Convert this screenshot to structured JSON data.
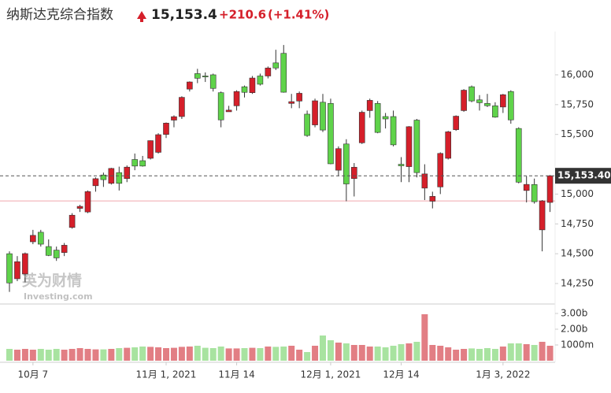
{
  "chart_data": {
    "type": "candlestick",
    "title": "纳斯达克综合指数",
    "price": "15,153.4",
    "change": "+210.6",
    "change_pct": "(+1.41%)",
    "last_label": "15,153.40",
    "watermark": [
      "英为财情",
      "Investing.com"
    ],
    "prev_close": 14942.8,
    "up_color": "#d51f2a",
    "down_color": "#5fd34a",
    "up_volume_color": "#e27e84",
    "down_volume_color": "#a8e3a0",
    "categories": [
      null,
      null,
      null,
      "10月 7",
      null,
      null,
      null,
      null,
      null,
      null,
      null,
      null,
      null,
      null,
      null,
      null,
      null,
      null,
      null,
      null,
      "11月 1, 2021",
      null,
      null,
      null,
      null,
      null,
      null,
      null,
      null,
      "11月 14",
      null,
      null,
      null,
      null,
      null,
      null,
      null,
      null,
      null,
      null,
      null,
      "12月 1, 2021",
      null,
      null,
      null,
      null,
      null,
      null,
      null,
      null,
      "12月 14",
      null,
      null,
      null,
      null,
      null,
      null,
      null,
      null,
      null,
      null,
      null,
      null,
      "1月 3, 2022",
      null,
      null,
      null,
      null,
      null,
      null
    ],
    "open": [
      14500,
      14290,
      14330,
      14600,
      14680,
      14560,
      14530,
      14510,
      14720,
      14880,
      14850,
      15070,
      15160,
      15090,
      15180,
      15130,
      15290,
      15280,
      15300,
      15350,
      15500,
      15620,
      15650,
      15880,
      16010,
      15990,
      16000,
      15850,
      15690,
      15740,
      15900,
      15850,
      15990,
      15990,
      16100,
      16180,
      15760,
      15780,
      15670,
      15580,
      15770,
      15760,
      15200,
      15420,
      15130,
      15430,
      15700,
      15760,
      15650,
      15650,
      15250,
      15230,
      15620,
      15050,
      14940,
      15060,
      15300,
      15540,
      15700,
      15900,
      15790,
      15760,
      15740,
      15730,
      15860,
      15550,
      15030,
      15080,
      14700,
      14930
    ],
    "high": [
      14520,
      14480,
      14510,
      14700,
      14700,
      14620,
      14560,
      14590,
      14840,
      14910,
      15030,
      15140,
      15180,
      15220,
      15230,
      15240,
      15340,
      15320,
      15450,
      15510,
      15600,
      15660,
      15820,
      15945,
      16050,
      16020,
      16010,
      15860,
      15740,
      15870,
      15910,
      15990,
      16010,
      16070,
      16210,
      16250,
      15840,
      15860,
      15700,
      15800,
      15840,
      15800,
      15400,
      15460,
      15260,
      15700,
      15800,
      15780,
      15680,
      15700,
      15310,
      15570,
      15630,
      15250,
      15020,
      15350,
      15530,
      15660,
      15880,
      15910,
      15830,
      15840,
      15770,
      15840,
      15870,
      15560,
      15150,
      15130,
      14950,
      15160
    ],
    "low": [
      14180,
      14270,
      14260,
      14580,
      14560,
      14480,
      14440,
      14480,
      14710,
      14850,
      14840,
      15020,
      15060,
      15080,
      15030,
      15100,
      15200,
      15230,
      15290,
      15340,
      15470,
      15560,
      15630,
      15860,
      15930,
      15940,
      15860,
      15560,
      15690,
      15700,
      15810,
      15840,
      15910,
      15970,
      16040,
      15850,
      15720,
      15720,
      15480,
      15560,
      15520,
      15250,
      15150,
      14940,
      14980,
      15420,
      15640,
      15510,
      15550,
      15400,
      15100,
      15100,
      15140,
      14950,
      14880,
      15000,
      15290,
      15530,
      15690,
      15770,
      15700,
      15730,
      15640,
      15680,
      15590,
      15090,
      14930,
      14920,
      14520,
      14850
    ],
    "close": [
      14255,
      14433,
      14501,
      14654,
      14580,
      14486,
      14465,
      14571,
      14823,
      14897,
      15021,
      15129,
      15121,
      15215,
      15090,
      15226,
      15235,
      15235,
      15448,
      15498,
      15595,
      15649,
      15811,
      15940,
      15971,
      15982,
      15886,
      15622,
      15704,
      15860,
      15853,
      15973,
      15921,
      16057,
      16057,
      15854,
      15775,
      15845,
      15491,
      15782,
      15537,
      15254,
      15381,
      15085,
      15225,
      15686,
      15786,
      15517,
      15630,
      15413,
      15237,
      15565,
      15180,
      15169,
      14981,
      15341,
      15522,
      15653,
      15871,
      15781,
      15766,
      15741,
      15645,
      15833,
      15622,
      15100,
      15081,
      14936,
      14943,
      15153.4
    ],
    "volume": [
      0.75,
      0.7,
      0.75,
      0.7,
      0.75,
      0.7,
      0.75,
      0.7,
      0.75,
      0.8,
      0.75,
      0.72,
      0.72,
      0.75,
      0.8,
      0.82,
      0.85,
      0.9,
      0.88,
      0.85,
      0.8,
      0.82,
      0.88,
      0.9,
      0.95,
      0.82,
      0.8,
      0.9,
      0.78,
      0.78,
      0.8,
      0.82,
      0.8,
      0.9,
      0.88,
      0.9,
      0.95,
      0.7,
      0.55,
      0.95,
      1.6,
      1.3,
      1.15,
      1.1,
      1.0,
      1.0,
      0.9,
      0.9,
      0.85,
      0.95,
      1.05,
      1.1,
      1.2,
      2.95,
      1.0,
      0.95,
      0.85,
      0.7,
      0.75,
      0.78,
      0.75,
      0.8,
      0.75,
      0.9,
      1.1,
      1.1,
      1.05,
      1.0,
      1.2,
      0.95
    ],
    "ylim": [
      14085,
      16297
    ],
    "yticks": [
      {
        "value": 16000,
        "label": "16,000"
      },
      {
        "value": 15750,
        "label": "15,750"
      },
      {
        "value": 15500,
        "label": "15,500"
      },
      {
        "value": 15000,
        "label": "15,000"
      },
      {
        "value": 14750,
        "label": "14,750"
      },
      {
        "value": 14500,
        "label": "14,500"
      },
      {
        "value": 14250,
        "label": "14,250"
      }
    ],
    "volume_ylim": [
      0,
      3.4
    ],
    "volume_yticks": [
      {
        "value": 3,
        "label": "3.00b"
      },
      {
        "value": 2,
        "label": "2.00b"
      },
      {
        "value": 1,
        "label": "1000m"
      }
    ]
  }
}
